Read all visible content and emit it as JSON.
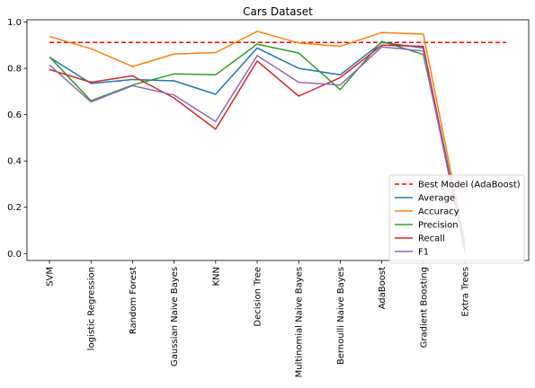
{
  "chart_data": {
    "type": "line",
    "title": "Cars Dataset",
    "xlabel": "",
    "ylabel": "",
    "categories": [
      "SVM",
      "logistic Regression",
      "Random Forest",
      "Gaussian Naive Bayes",
      "KNN",
      "Decision Tree",
      "Multinomial Naive Bayes",
      "Bernoulli Naive Bayes",
      "AdaBoost",
      "Gradient Boosting",
      "Extra Trees"
    ],
    "ylim": [
      -0.03,
      1.01
    ],
    "yticks": [
      "0.0",
      "0.2",
      "0.4",
      "0.6",
      "0.8",
      "1.0"
    ],
    "grid": false,
    "legend_position": "lower-right",
    "baseline": {
      "name": "Best Model (AdaBoost)",
      "value": 0.912,
      "color": "#ff0000",
      "style": "dashed"
    },
    "series": [
      {
        "name": "Average",
        "color": "#1f77b4",
        "values": [
          0.848,
          0.735,
          0.752,
          0.746,
          0.688,
          0.888,
          0.8,
          0.772,
          0.912,
          0.888,
          0.03
        ]
      },
      {
        "name": "Accuracy",
        "color": "#ff7f0e",
        "values": [
          0.938,
          0.885,
          0.808,
          0.862,
          0.868,
          0.96,
          0.91,
          0.895,
          0.955,
          0.948,
          0.05
        ]
      },
      {
        "name": "Precision",
        "color": "#2ca02c",
        "values": [
          0.85,
          0.66,
          0.728,
          0.776,
          0.772,
          0.905,
          0.866,
          0.708,
          0.917,
          0.86,
          0.04
        ]
      },
      {
        "name": "Recall",
        "color": "#d62728",
        "values": [
          0.795,
          0.74,
          0.768,
          0.672,
          0.537,
          0.832,
          0.68,
          0.76,
          0.9,
          0.895,
          0.01
        ]
      },
      {
        "name": "F1",
        "color": "#9467bd",
        "values": [
          0.815,
          0.655,
          0.725,
          0.685,
          0.57,
          0.855,
          0.74,
          0.728,
          0.893,
          0.875,
          0.005
        ]
      }
    ]
  }
}
